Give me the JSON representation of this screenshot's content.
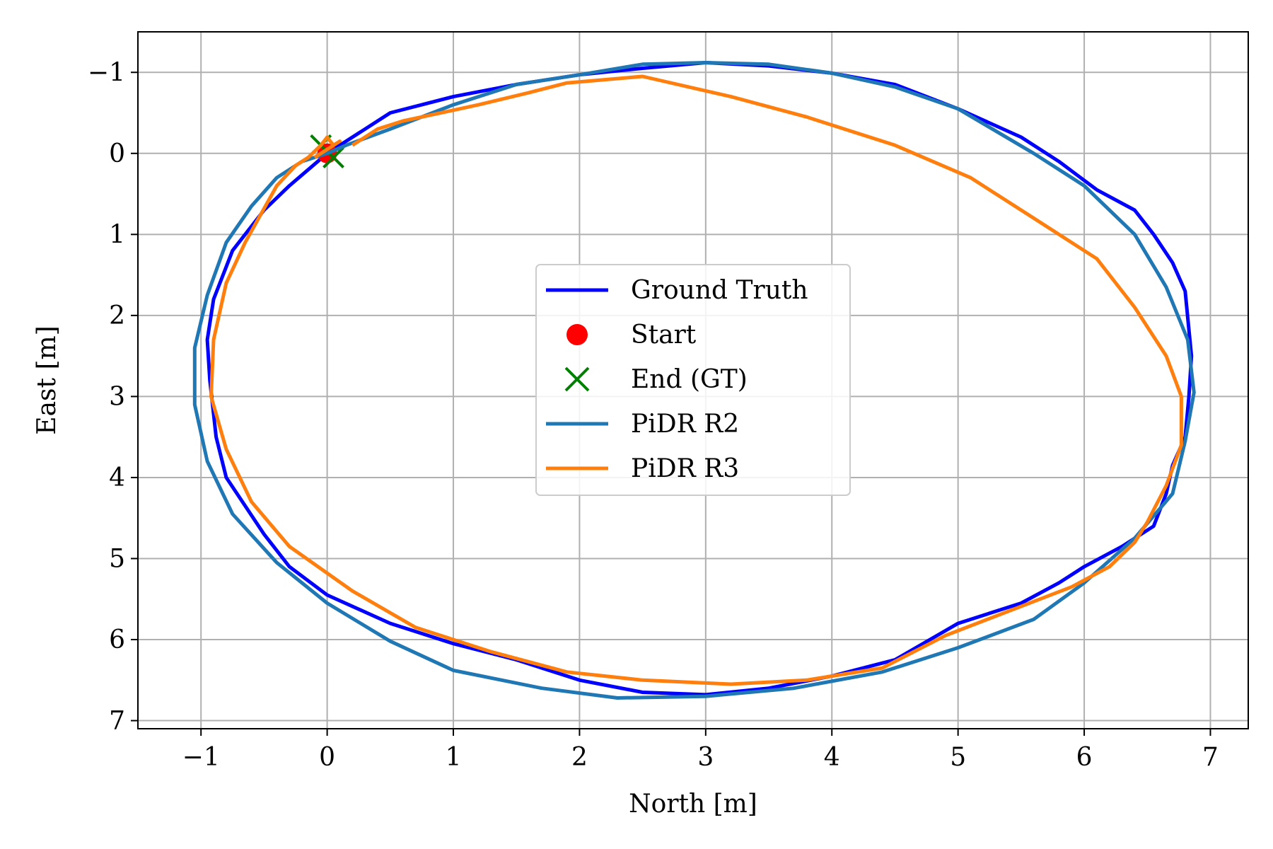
{
  "chart_data": {
    "type": "line",
    "xlabel": "North [m]",
    "ylabel": "East [m]",
    "xlim": [
      -1.5,
      7.3
    ],
    "ylim": [
      7.1,
      -1.5
    ],
    "y_inverted": true,
    "xticks": [
      -1,
      0,
      1,
      2,
      3,
      4,
      5,
      6,
      7
    ],
    "yticks": [
      -1,
      0,
      1,
      2,
      3,
      4,
      5,
      6,
      7
    ],
    "xtick_labels": [
      "−1",
      "0",
      "1",
      "2",
      "3",
      "4",
      "5",
      "6",
      "7"
    ],
    "ytick_labels": [
      "−1",
      "0",
      "1",
      "2",
      "3",
      "4",
      "5",
      "6",
      "7"
    ],
    "grid": true,
    "legend_position": "center",
    "legend": [
      "Ground Truth",
      "Start",
      "End (GT)",
      "PiDR R2",
      "PiDR R3"
    ],
    "colors": {
      "ground_truth": "#0000ff",
      "start": "#ff0000",
      "end": "#008000",
      "pidr_r2": "#1f77b4",
      "pidr_r3": "#ff7f0e"
    },
    "series": [
      {
        "name": "Ground Truth",
        "points": [
          [
            0,
            0
          ],
          [
            0.2,
            -0.2
          ],
          [
            0.5,
            -0.5
          ],
          [
            1,
            -0.7
          ],
          [
            1.5,
            -0.85
          ],
          [
            2,
            -0.97
          ],
          [
            2.5,
            -1.05
          ],
          [
            3,
            -1.12
          ],
          [
            3.5,
            -1.08
          ],
          [
            4,
            -0.99
          ],
          [
            4.5,
            -0.85
          ],
          [
            5,
            -0.55
          ],
          [
            5.5,
            -0.2
          ],
          [
            5.8,
            0.1
          ],
          [
            6.1,
            0.45
          ],
          [
            6.4,
            0.7
          ],
          [
            6.55,
            1.0
          ],
          [
            6.7,
            1.35
          ],
          [
            6.8,
            1.7
          ],
          [
            6.85,
            2.5
          ],
          [
            6.83,
            3.0
          ],
          [
            6.8,
            3.5
          ],
          [
            6.7,
            3.85
          ],
          [
            6.65,
            4.2
          ],
          [
            6.55,
            4.6
          ],
          [
            6.3,
            4.85
          ],
          [
            6.0,
            5.1
          ],
          [
            5.8,
            5.3
          ],
          [
            5.5,
            5.55
          ],
          [
            5.0,
            5.8
          ],
          [
            4.5,
            6.25
          ],
          [
            4.0,
            6.45
          ],
          [
            3.5,
            6.6
          ],
          [
            3.0,
            6.68
          ],
          [
            2.5,
            6.65
          ],
          [
            2.0,
            6.5
          ],
          [
            1.5,
            6.25
          ],
          [
            1.0,
            6.05
          ],
          [
            0.5,
            5.8
          ],
          [
            0.0,
            5.45
          ],
          [
            -0.3,
            5.1
          ],
          [
            -0.5,
            4.7
          ],
          [
            -0.8,
            4.0
          ],
          [
            -0.88,
            3.5
          ],
          [
            -0.93,
            2.8
          ],
          [
            -0.95,
            2.3
          ],
          [
            -0.9,
            1.8
          ],
          [
            -0.75,
            1.2
          ],
          [
            -0.5,
            0.7
          ],
          [
            -0.3,
            0.4
          ],
          [
            -0.15,
            0.2
          ],
          [
            0,
            0
          ]
        ]
      },
      {
        "name": "Start",
        "points": [
          [
            0,
            0
          ]
        ]
      },
      {
        "name": "End (GT)",
        "points": [
          [
            -0.05,
            -0.1
          ],
          [
            0.05,
            0.05
          ]
        ]
      },
      {
        "name": "PiDR R2",
        "points": [
          [
            0.15,
            -0.1
          ],
          [
            0.5,
            -0.3
          ],
          [
            1.0,
            -0.6
          ],
          [
            1.5,
            -0.85
          ],
          [
            2.0,
            -0.97
          ],
          [
            2.5,
            -1.1
          ],
          [
            3.0,
            -1.12
          ],
          [
            3.5,
            -1.1
          ],
          [
            4.0,
            -0.99
          ],
          [
            4.5,
            -0.82
          ],
          [
            5.0,
            -0.55
          ],
          [
            5.6,
            0.0
          ],
          [
            6.0,
            0.4
          ],
          [
            6.4,
            1.0
          ],
          [
            6.65,
            1.65
          ],
          [
            6.82,
            2.3
          ],
          [
            6.87,
            2.95
          ],
          [
            6.8,
            3.55
          ],
          [
            6.7,
            4.2
          ],
          [
            6.4,
            4.75
          ],
          [
            6.0,
            5.3
          ],
          [
            5.6,
            5.75
          ],
          [
            5.0,
            6.1
          ],
          [
            4.4,
            6.4
          ],
          [
            3.7,
            6.6
          ],
          [
            3.0,
            6.7
          ],
          [
            2.3,
            6.72
          ],
          [
            1.7,
            6.6
          ],
          [
            1.0,
            6.38
          ],
          [
            0.5,
            6.02
          ],
          [
            0.0,
            5.55
          ],
          [
            -0.4,
            5.05
          ],
          [
            -0.75,
            4.45
          ],
          [
            -0.95,
            3.8
          ],
          [
            -1.05,
            3.1
          ],
          [
            -1.05,
            2.4
          ],
          [
            -0.95,
            1.75
          ],
          [
            -0.8,
            1.1
          ],
          [
            -0.6,
            0.65
          ],
          [
            -0.4,
            0.3
          ],
          [
            -0.2,
            0.1
          ],
          [
            0.0,
            0.0
          ],
          [
            0.15,
            -0.1
          ]
        ]
      },
      {
        "name": "PiDR R3",
        "points": [
          [
            0.2,
            -0.1
          ],
          [
            0.4,
            -0.3
          ],
          [
            0.6,
            -0.4
          ],
          [
            1.2,
            -0.6
          ],
          [
            1.6,
            -0.75
          ],
          [
            1.9,
            -0.87
          ],
          [
            2.5,
            -0.95
          ],
          [
            3.2,
            -0.7
          ],
          [
            3.8,
            -0.45
          ],
          [
            4.5,
            -0.1
          ],
          [
            5.1,
            0.3
          ],
          [
            5.6,
            0.8
          ],
          [
            6.1,
            1.3
          ],
          [
            6.4,
            1.9
          ],
          [
            6.65,
            2.5
          ],
          [
            6.77,
            3.0
          ],
          [
            6.77,
            3.6
          ],
          [
            6.65,
            4.1
          ],
          [
            6.5,
            4.55
          ],
          [
            6.4,
            4.8
          ],
          [
            6.2,
            5.1
          ],
          [
            5.9,
            5.35
          ],
          [
            5.4,
            5.65
          ],
          [
            4.9,
            5.95
          ],
          [
            4.4,
            6.35
          ],
          [
            3.8,
            6.5
          ],
          [
            3.2,
            6.55
          ],
          [
            2.5,
            6.5
          ],
          [
            1.9,
            6.4
          ],
          [
            1.3,
            6.15
          ],
          [
            0.7,
            5.85
          ],
          [
            0.2,
            5.4
          ],
          [
            -0.3,
            4.85
          ],
          [
            -0.6,
            4.3
          ],
          [
            -0.8,
            3.65
          ],
          [
            -0.92,
            3.0
          ],
          [
            -0.9,
            2.3
          ],
          [
            -0.8,
            1.6
          ],
          [
            -0.65,
            1.1
          ],
          [
            -0.4,
            0.4
          ],
          [
            -0.25,
            0.15
          ],
          [
            -0.15,
            0.05
          ],
          [
            -0.05,
            -0.1
          ],
          [
            0.0,
            -0.2
          ],
          [
            0.05,
            -0.1
          ],
          [
            0.1,
            -0.15
          ],
          [
            0.0,
            -0.05
          ],
          [
            -0.1,
            0.05
          ]
        ]
      }
    ]
  }
}
